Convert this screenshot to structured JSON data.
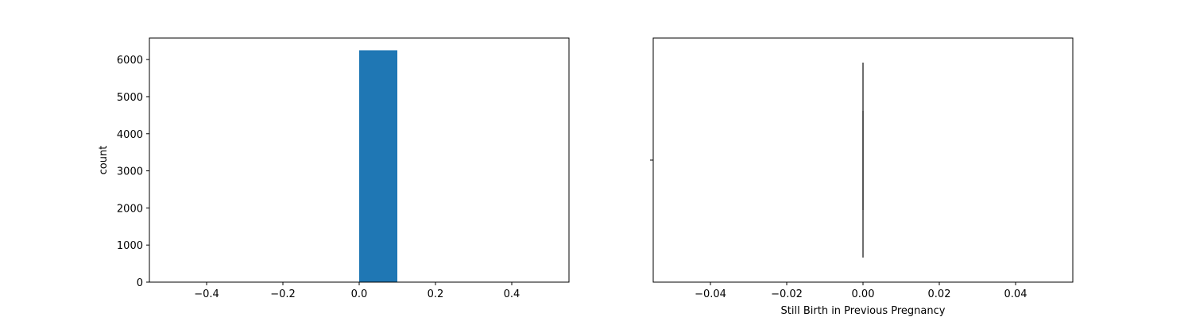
{
  "chart_data": [
    {
      "type": "bar",
      "title": "",
      "xlabel": "",
      "ylabel": "count",
      "xlim": [
        -0.55,
        0.55
      ],
      "ylim": [
        0,
        6580
      ],
      "x_ticks": [
        -0.4,
        -0.2,
        0.0,
        0.2,
        0.4
      ],
      "x_tick_labels": [
        "−0.4",
        "−0.2",
        "0.0",
        "0.2",
        "0.4"
      ],
      "y_ticks": [
        0,
        1000,
        2000,
        3000,
        4000,
        5000,
        6000
      ],
      "y_tick_labels": [
        "0",
        "1000",
        "2000",
        "3000",
        "4000",
        "5000",
        "6000"
      ],
      "bins": [
        {
          "x0": 0.0,
          "x1": 0.1,
          "count": 6250
        }
      ],
      "bar_color": "#1f77b4",
      "grid": false
    },
    {
      "type": "box",
      "title": "",
      "xlabel": "Still Birth in Previous Pregnancy",
      "ylabel": "",
      "xlim": [
        -0.055,
        0.055
      ],
      "x_ticks": [
        -0.04,
        -0.02,
        0.0,
        0.02,
        0.04
      ],
      "x_tick_labels": [
        "−0.04",
        "−0.02",
        "0.00",
        "0.02",
        "0.04"
      ],
      "box": {
        "min": 0,
        "q1": 0,
        "median": 0,
        "q3": 0,
        "max": 0
      },
      "line_color": "#3f3f3f",
      "grid": false
    }
  ]
}
